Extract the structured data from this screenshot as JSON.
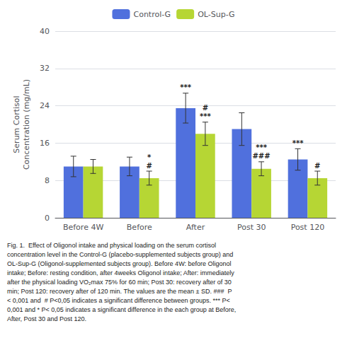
{
  "chart_data": {
    "type": "bar",
    "categories": [
      "Before 4W",
      "Before",
      "After",
      "Post 30",
      "Post 120"
    ],
    "series": [
      {
        "name": "Control-G",
        "values": [
          11.0,
          11.0,
          23.5,
          19.0,
          12.5
        ],
        "errors": [
          2.2,
          2.0,
          3.2,
          3.5,
          2.3
        ]
      },
      {
        "name": "OL-Sup-G",
        "values": [
          11.0,
          8.5,
          18.0,
          10.5,
          8.5
        ],
        "errors": [
          1.5,
          1.5,
          2.5,
          1.5,
          1.5
        ]
      }
    ],
    "ylabel": "Serum Cortisol\nConcentration (mg/mL)",
    "ylim": [
      0,
      40
    ],
    "yticks": [
      0,
      8,
      16,
      24,
      32,
      40
    ],
    "legend": "top",
    "annotations": [
      {
        "category": "Before",
        "series": "OL-Sup-G",
        "texts": [
          "#",
          "*"
        ]
      },
      {
        "category": "After",
        "series": "Control-G",
        "texts": [
          "***"
        ]
      },
      {
        "category": "After",
        "series": "OL-Sup-G",
        "texts": [
          "***",
          "#"
        ]
      },
      {
        "category": "Post 30",
        "series": "OL-Sup-G",
        "texts": [
          "###",
          "***"
        ]
      },
      {
        "category": "Post 120",
        "series": "Control-G",
        "texts": [
          "***"
        ]
      },
      {
        "category": "Post 120",
        "series": "OL-Sup-G",
        "texts": [
          "#"
        ]
      }
    ],
    "caption": "Fig. 1.  Effect of Oligonol intake and physical loading on the serum cortisol\nconcentration level in the Control-G (placebo-supplemented subjects group) and\nOL-Sup-G (Oligonol-supplemented subjects group). Before 4W: before Oligonol\nintake; Before: resting condition, after 4weeks Oligonol intake; After: immediately\nafter the physical loading VO₂max 75% for 60 min; Post 30: recovery after of 30\nmin; Post 120: recovery after of 120 min. The values are the mean ± SD. ###  P\n< 0,001 and  # P<0,05 indicates a significant difference between groups. *** P<\n0,001 and * P< 0,05 indicates a significant difference in the each group at Before,\nAfter, Post 30 and Post 120."
  }
}
